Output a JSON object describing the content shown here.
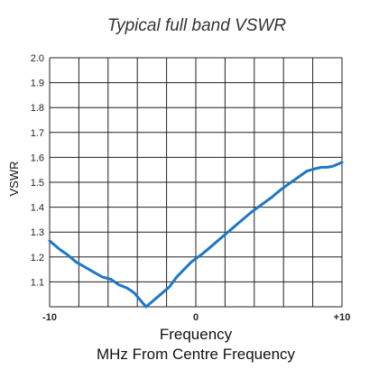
{
  "chart_data": {
    "type": "line",
    "title": "Typical full band VSWR",
    "xlabel": "Frequency",
    "xlabel2": "MHz From Centre Frequency",
    "ylabel": "VSWR",
    "xlim": [
      -10,
      10
    ],
    "ylim": [
      1.0,
      2.0
    ],
    "grid": true,
    "legend": "none",
    "x_ticks": [
      {
        "value": -10,
        "label": "-10"
      },
      {
        "value": 0,
        "label": "0"
      },
      {
        "value": 10,
        "label": "+10"
      }
    ],
    "y_ticks": [
      {
        "value": 1.1,
        "label": "1.1"
      },
      {
        "value": 1.2,
        "label": "1.2"
      },
      {
        "value": 1.3,
        "label": "1.3"
      },
      {
        "value": 1.4,
        "label": "1.4"
      },
      {
        "value": 1.5,
        "label": "1.5"
      },
      {
        "value": 1.6,
        "label": "1.6"
      },
      {
        "value": 1.7,
        "label": "1.7"
      },
      {
        "value": 1.8,
        "label": "1.8"
      },
      {
        "value": 1.9,
        "label": "1.9"
      },
      {
        "value": 2.0,
        "label": "2.0"
      }
    ],
    "grid_x": [
      -10,
      -8,
      -6,
      -4,
      -2,
      0,
      2,
      4,
      6,
      8,
      10
    ],
    "grid_y": [
      1.0,
      1.1,
      1.2,
      1.3,
      1.4,
      1.5,
      1.6,
      1.7,
      1.8,
      1.9,
      2.0
    ],
    "series_color": "#1f77c4",
    "series": [
      {
        "x": [
          -10,
          -9.3,
          -8.8,
          -8.2,
          -7.6,
          -7.0,
          -6.4,
          -5.8,
          -5.3,
          -4.7,
          -4.2,
          -3.7,
          -3.4,
          -3.0,
          -2.4,
          -1.8,
          -1.3,
          -0.8,
          -0.3,
          0.5,
          1.0,
          1.8,
          2.6,
          3.2,
          3.8,
          4.5,
          5.2,
          5.8,
          6.4,
          7.0,
          7.6,
          8.2,
          8.6,
          9.0,
          9.4,
          9.8,
          10
        ],
        "y": [
          1.265,
          1.23,
          1.21,
          1.18,
          1.16,
          1.14,
          1.12,
          1.11,
          1.09,
          1.075,
          1.055,
          1.02,
          1.0,
          1.02,
          1.05,
          1.08,
          1.12,
          1.15,
          1.18,
          1.215,
          1.24,
          1.28,
          1.32,
          1.35,
          1.38,
          1.41,
          1.44,
          1.47,
          1.495,
          1.52,
          1.545,
          1.555,
          1.56,
          1.56,
          1.565,
          1.575,
          1.58
        ]
      }
    ]
  }
}
